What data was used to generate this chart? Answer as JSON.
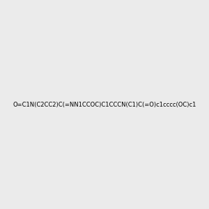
{
  "smiles": "O=C1N(C2CC2)C(=NN1CCOC)C1CCCN(C1)C(=O)c1cccc(OC)c1",
  "image_size": 300,
  "background_color": "#ebebeb",
  "atom_colors": {
    "N": "#0000ff",
    "O": "#ff0000",
    "C": "#000000"
  },
  "title": ""
}
